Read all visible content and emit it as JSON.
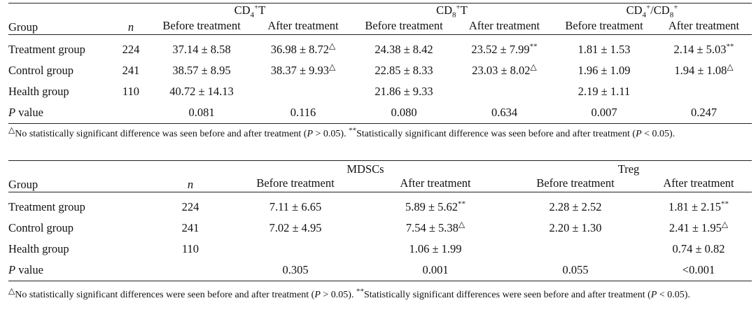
{
  "table1": {
    "header": {
      "group": "Group",
      "n": "n",
      "cd4_label": "CD₄⁺T",
      "cd8_label": "CD₈⁺T",
      "ratio_label": "CD₄⁺/CD₈⁺",
      "before": "Before treatment",
      "after": "After treatment"
    },
    "rows": [
      {
        "group": "Treatment group",
        "n": "224",
        "cd4_before": "37.14 ± 8.58",
        "cd4_after": "36.98 ± 8.72",
        "cd4_after_mark": "△",
        "cd8_before": "24.38 ± 8.42",
        "cd8_after": "23.52 ± 7.99",
        "cd8_after_mark": "**",
        "ratio_before": "1.81 ± 1.53",
        "ratio_after": "2.14 ± 5.03",
        "ratio_after_mark": "**"
      },
      {
        "group": "Control group",
        "n": "241",
        "cd4_before": "38.57 ± 8.95",
        "cd4_after": "38.37 ± 9.93",
        "cd4_after_mark": "△",
        "cd8_before": "22.85 ± 8.33",
        "cd8_after": "23.03 ± 8.02",
        "cd8_after_mark": "△",
        "ratio_before": "1.96 ± 1.09",
        "ratio_after": "1.94 ± 1.08",
        "ratio_after_mark": "△"
      },
      {
        "group": "Health group",
        "n": "110",
        "cd4_before": "40.72 ± 14.13",
        "cd4_after": "",
        "cd4_after_mark": "",
        "cd8_before": "21.86 ± 9.33",
        "cd8_after": "",
        "cd8_after_mark": "",
        "ratio_before": "2.19 ± 1.11",
        "ratio_after": "",
        "ratio_after_mark": ""
      }
    ],
    "pvalue": {
      "label": "P",
      "label_rest": " value",
      "cd4_before": "0.081",
      "cd4_after": "0.116",
      "cd8_before": "0.080",
      "cd8_after": "0.634",
      "ratio_before": "0.007",
      "ratio_after": "0.247"
    },
    "footnote": {
      "mark1": "△",
      "text1": "No statistically significant difference was seen before and after treatment (",
      "p1": "P",
      "text2": " > 0.05). ",
      "mark2": "**",
      "text3": "Statistically significant difference was seen before and after treatment (",
      "p2": "P",
      "text4": " < 0.05)."
    }
  },
  "table2": {
    "header": {
      "group": "Group",
      "n": "n",
      "mdsc_label": "MDSCs",
      "treg_label": "Treg",
      "before": "Before treatment",
      "after": "After treatment"
    },
    "rows": [
      {
        "group": "Treatment group",
        "n": "224",
        "mdsc_before": "7.11 ± 6.65",
        "mdsc_after": "5.89 ± 5.62",
        "mdsc_after_mark": "**",
        "treg_before": "2.28 ± 2.52",
        "treg_after": "1.81 ± 2.15",
        "treg_after_mark": "**"
      },
      {
        "group": "Control group",
        "n": "241",
        "mdsc_before": "7.02 ± 4.95",
        "mdsc_after": "7.54 ± 5.38",
        "mdsc_after_mark": "△",
        "treg_before": "2.20 ± 1.30",
        "treg_after": "2.41 ± 1.95",
        "treg_after_mark": "△"
      },
      {
        "group": "Health group",
        "n": "110",
        "mdsc_before": "",
        "mdsc_after": "1.06 ± 1.99",
        "mdsc_after_mark": "",
        "treg_before": "",
        "treg_after": "0.74 ± 0.82",
        "treg_after_mark": ""
      }
    ],
    "pvalue": {
      "label": "P",
      "label_rest": " value",
      "mdsc_before": "0.305",
      "mdsc_after": "0.001",
      "treg_before": "0.055",
      "treg_after": "<0.001"
    },
    "footnote": {
      "mark1": "△",
      "text1": "No statistically significant differences were seen before and after treatment (",
      "p1": "P",
      "text2": " > 0.05). ",
      "mark2": "**",
      "text3": "Statistically significant differences were seen before and after treatment (",
      "p2": "P",
      "text4": " < 0.05)."
    }
  }
}
